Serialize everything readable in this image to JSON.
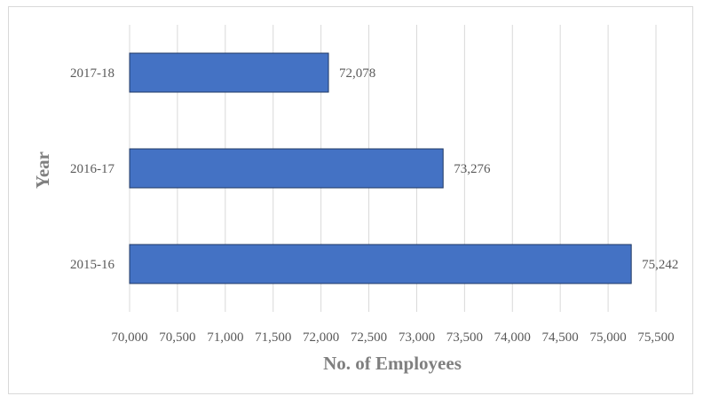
{
  "chart_data": {
    "type": "bar",
    "orientation": "horizontal",
    "categories": [
      "2015-16",
      "2016-17",
      "2017-18"
    ],
    "values": [
      75242,
      73276,
      72078
    ],
    "data_labels": [
      "75,242",
      "73,276",
      "72,078"
    ],
    "xlabel": "No. of Employees",
    "ylabel": "Year",
    "xlim": [
      70000,
      75500
    ],
    "x_ticks": [
      70000,
      70500,
      71000,
      71500,
      72000,
      72500,
      73000,
      73500,
      74000,
      74500,
      75000,
      75500
    ],
    "x_tick_labels": [
      "70,000",
      "70,500",
      "71,000",
      "71,500",
      "72,000",
      "72,500",
      "73,000",
      "73,500",
      "74,000",
      "74,500",
      "75,000",
      "75,500"
    ],
    "grid": "vertical",
    "bar_color": "#4472c4",
    "bar_edge_color": "#1f3864",
    "grid_color": "#d9d9d9"
  }
}
